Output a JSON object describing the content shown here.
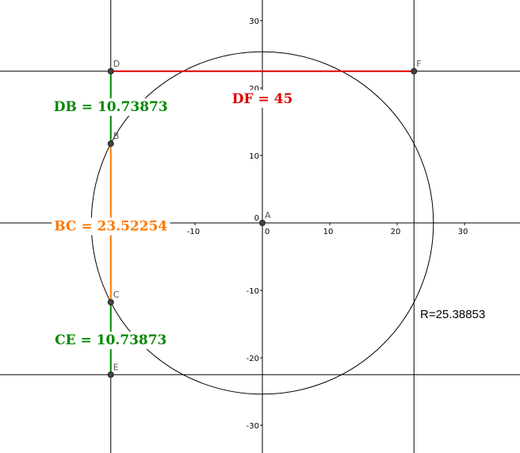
{
  "colors": {
    "axis": "#000000",
    "circle": "#000000",
    "df": "#dd0000",
    "db": "#008800",
    "bc": "#ff7700",
    "ce": "#008800",
    "point": "#444444"
  },
  "axes": {
    "x_ticks": [
      -10,
      0,
      10,
      20,
      30
    ],
    "y_ticks": [
      30,
      20,
      10,
      -10,
      -20,
      -30
    ],
    "origin_label": "0",
    "x_tick_labels": [
      "-10",
      "0",
      "10",
      "20",
      "30"
    ],
    "y_tick_labels": [
      "30",
      "20",
      "10",
      "-10",
      "-20",
      "-30"
    ]
  },
  "circle": {
    "center": "A",
    "radius": 25.38853,
    "label": "R=25.38853"
  },
  "points": [
    {
      "name": "A",
      "x": 0,
      "y": 0
    },
    {
      "name": "D",
      "x": -22.5,
      "y": 22.5
    },
    {
      "name": "F",
      "x": 22.5,
      "y": 22.5
    },
    {
      "name": "B",
      "x": -22.5,
      "y": 11.76
    },
    {
      "name": "C",
      "x": -22.5,
      "y": -11.76
    },
    {
      "name": "E",
      "x": -22.5,
      "y": -22.5
    }
  ],
  "lines": [
    {
      "type": "vertical",
      "x": -22.5
    },
    {
      "type": "vertical",
      "x": 22.5
    },
    {
      "type": "horizontal",
      "y": 22.5
    },
    {
      "type": "horizontal",
      "y": -22.5
    }
  ],
  "segments": [
    {
      "from": "D",
      "to": "F",
      "color_key": "df"
    },
    {
      "from": "D",
      "to": "B",
      "color_key": "db"
    },
    {
      "from": "B",
      "to": "C",
      "color_key": "bc"
    },
    {
      "from": "C",
      "to": "E",
      "color_key": "ce"
    }
  ],
  "measurements": [
    {
      "text": "DF = 45",
      "color_key": "df",
      "at": [
        0,
        18.5
      ]
    },
    {
      "text": "DB = 10.73873",
      "color_key": "db",
      "at": [
        -22.5,
        17.3
      ]
    },
    {
      "text": "BC = 23.52254",
      "color_key": "bc",
      "at": [
        -22.5,
        -0.4
      ]
    },
    {
      "text": "CE = 10.73873",
      "color_key": "ce",
      "at": [
        -22.5,
        -17.3
      ]
    }
  ]
}
